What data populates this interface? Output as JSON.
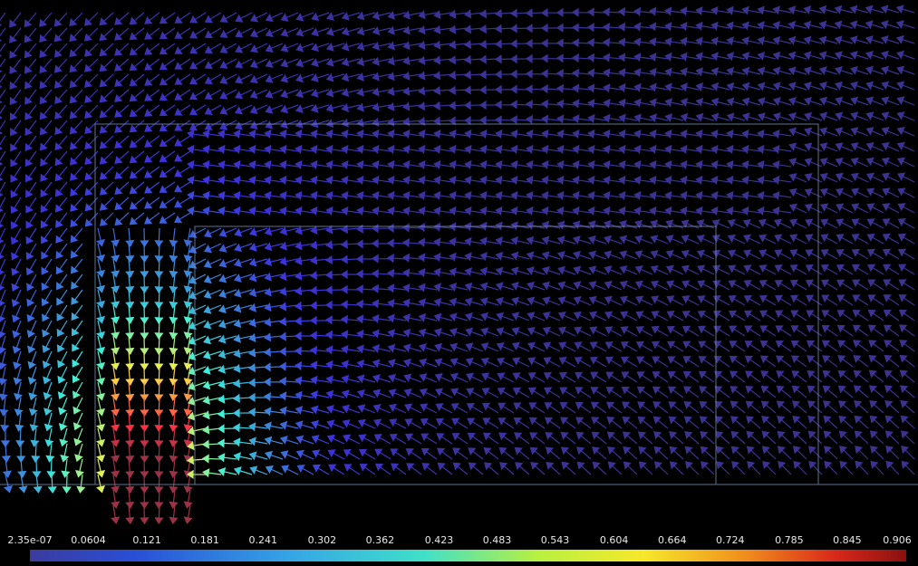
{
  "chart_data": {
    "type": "colorbar",
    "colormap": "jet",
    "xlim": [
      2.35e-07,
      0.906
    ],
    "xticks": [
      {
        "value": 2.35e-07,
        "label": "2.35e-07"
      },
      0.0604,
      0.121,
      0.181,
      0.241,
      0.302,
      0.362,
      0.423,
      0.483,
      0.543,
      0.604,
      0.664,
      0.724,
      0.785,
      0.845,
      0.906
    ]
  }
}
